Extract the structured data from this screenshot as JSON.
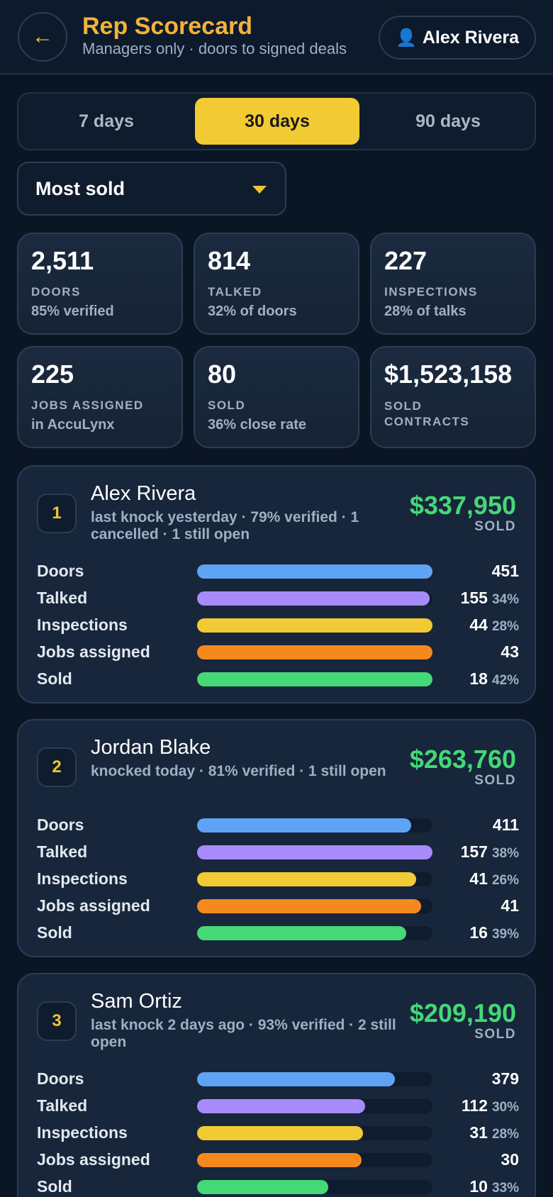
{
  "header": {
    "back_icon": "←",
    "title": "Rep Scorecard",
    "subtitle": "Managers only · doors to signed deals",
    "user_icon": "👤",
    "user_name": "Alex Rivera"
  },
  "tabs": [
    {
      "label": "7 days",
      "active": false
    },
    {
      "label": "30 days",
      "active": true
    },
    {
      "label": "90 days",
      "active": false
    }
  ],
  "sort_select": {
    "value": "Most sold"
  },
  "stats": [
    {
      "value": "2,511",
      "label": "DOORS",
      "sub": "85% verified"
    },
    {
      "value": "814",
      "label": "TALKED",
      "sub": "32% of doors"
    },
    {
      "value": "227",
      "label": "INSPECTIONS",
      "sub": "28% of talks"
    },
    {
      "value": "225",
      "label": "JOBS ASSIGNED",
      "sub": "in AccuLynx"
    },
    {
      "value": "80",
      "label": "SOLD",
      "sub": "36% close rate"
    },
    {
      "value": "$1,523,158",
      "label": "SOLD\nCONTRACTS",
      "sub": ""
    }
  ],
  "colors": {
    "doors": "#5fa3f5",
    "talked": "#a78bfa",
    "inspections": "#f2cb34",
    "jobs": "#f5891e",
    "sold": "#44d877"
  },
  "reps": [
    {
      "rank": "1",
      "name": "Alex Rivera",
      "meta": "last knock yesterday · 79% verified · 1 cancelled · 1 still open",
      "amount": "$337,950",
      "amount_label": "SOLD",
      "metrics": [
        {
          "label": "Doors",
          "value": "451",
          "pct": "",
          "fill": 1.0,
          "color": "doors"
        },
        {
          "label": "Talked",
          "value": "155",
          "pct": "34%",
          "fill": 0.987,
          "color": "talked"
        },
        {
          "label": "Inspections",
          "value": "44",
          "pct": "28%",
          "fill": 1.0,
          "color": "inspections"
        },
        {
          "label": "Jobs assigned",
          "value": "43",
          "pct": "",
          "fill": 1.0,
          "color": "jobs"
        },
        {
          "label": "Sold",
          "value": "18",
          "pct": "42%",
          "fill": 1.0,
          "color": "sold"
        }
      ]
    },
    {
      "rank": "2",
      "name": "Jordan Blake",
      "meta": "knocked today · 81% verified · 1 still open",
      "amount": "$263,760",
      "amount_label": "SOLD",
      "metrics": [
        {
          "label": "Doors",
          "value": "411",
          "pct": "",
          "fill": 0.911,
          "color": "doors"
        },
        {
          "label": "Talked",
          "value": "157",
          "pct": "38%",
          "fill": 1.0,
          "color": "talked"
        },
        {
          "label": "Inspections",
          "value": "41",
          "pct": "26%",
          "fill": 0.932,
          "color": "inspections"
        },
        {
          "label": "Jobs assigned",
          "value": "41",
          "pct": "",
          "fill": 0.953,
          "color": "jobs"
        },
        {
          "label": "Sold",
          "value": "16",
          "pct": "39%",
          "fill": 0.889,
          "color": "sold"
        }
      ]
    },
    {
      "rank": "3",
      "name": "Sam Ortiz",
      "meta": "last knock 2 days ago · 93% verified · 2 still open",
      "amount": "$209,190",
      "amount_label": "SOLD",
      "metrics": [
        {
          "label": "Doors",
          "value": "379",
          "pct": "",
          "fill": 0.84,
          "color": "doors"
        },
        {
          "label": "Talked",
          "value": "112",
          "pct": "30%",
          "fill": 0.713,
          "color": "talked"
        },
        {
          "label": "Inspections",
          "value": "31",
          "pct": "28%",
          "fill": 0.705,
          "color": "inspections"
        },
        {
          "label": "Jobs assigned",
          "value": "30",
          "pct": "",
          "fill": 0.698,
          "color": "jobs"
        },
        {
          "label": "Sold",
          "value": "10",
          "pct": "33%",
          "fill": 0.556,
          "color": "sold"
        }
      ]
    }
  ]
}
